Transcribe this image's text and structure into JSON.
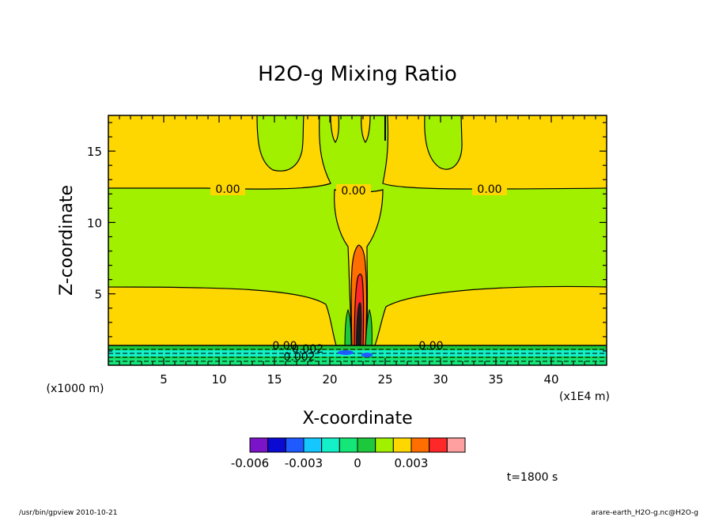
{
  "chart_data": {
    "type": "heatmap",
    "title": "H2O-g Mixing Ratio",
    "xlabel": "X-coordinate",
    "ylabel": "Z-coordinate",
    "x_unit": "(x1E4 m)",
    "y_unit": "(x1000 m)",
    "xlim": [
      0,
      45
    ],
    "ylim": [
      0,
      17.5
    ],
    "xticks": [
      "5",
      "10",
      "15",
      "20",
      "25",
      "30",
      "35",
      "40"
    ],
    "xtick_values": [
      5,
      10,
      15,
      20,
      25,
      30,
      35,
      40
    ],
    "yticks": [
      "5",
      "10",
      "15"
    ],
    "ytick_values": [
      5,
      10,
      15
    ],
    "contour_labels": [
      "0.00",
      "0.00",
      "0.00",
      "0.00",
      "0.00",
      "-0.002",
      "0.002"
    ],
    "colorbar": {
      "colors": [
        "#7b14c8",
        "#0a0ad2",
        "#1e5aff",
        "#14c8ff",
        "#14f0c8",
        "#14e678",
        "#1ec83c",
        "#a0f000",
        "#ffd700",
        "#ff6e00",
        "#ff2828",
        "#ffa0a0"
      ],
      "labels": [
        "-0.006",
        "-0.003",
        "0",
        "0.003"
      ],
      "label_values": [
        -0.006,
        -0.003,
        0,
        0.003
      ]
    },
    "time_label": "t=1800 s"
  },
  "footer": {
    "left": "/usr/bin/gpview  2010-10-21",
    "right": "arare-earth_H2O-g.nc@H2O-g"
  },
  "colors": {
    "yellow": "#ffd700",
    "green": "#a0f000",
    "orange": "#ff6e00",
    "red": "#ff2828",
    "cyan": "#14f0c8",
    "blue": "#1e5aff"
  }
}
